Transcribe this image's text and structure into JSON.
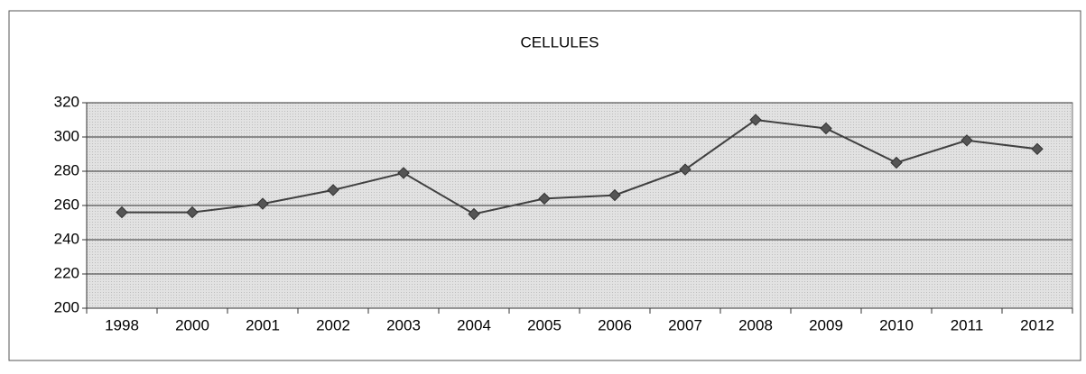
{
  "chart_data": {
    "type": "line",
    "title": "CELLULES",
    "categories": [
      "1998",
      "2000",
      "2001",
      "2002",
      "2003",
      "2004",
      "2005",
      "2006",
      "2007",
      "2008",
      "2009",
      "2010",
      "2011",
      "2012"
    ],
    "values": [
      256,
      256,
      261,
      269,
      279,
      255,
      264,
      266,
      281,
      310,
      305,
      285,
      298,
      293
    ],
    "color": "#404040",
    "ylim": [
      200,
      320
    ],
    "yticks": [
      200,
      220,
      240,
      260,
      280,
      300,
      320
    ],
    "grid": true
  }
}
